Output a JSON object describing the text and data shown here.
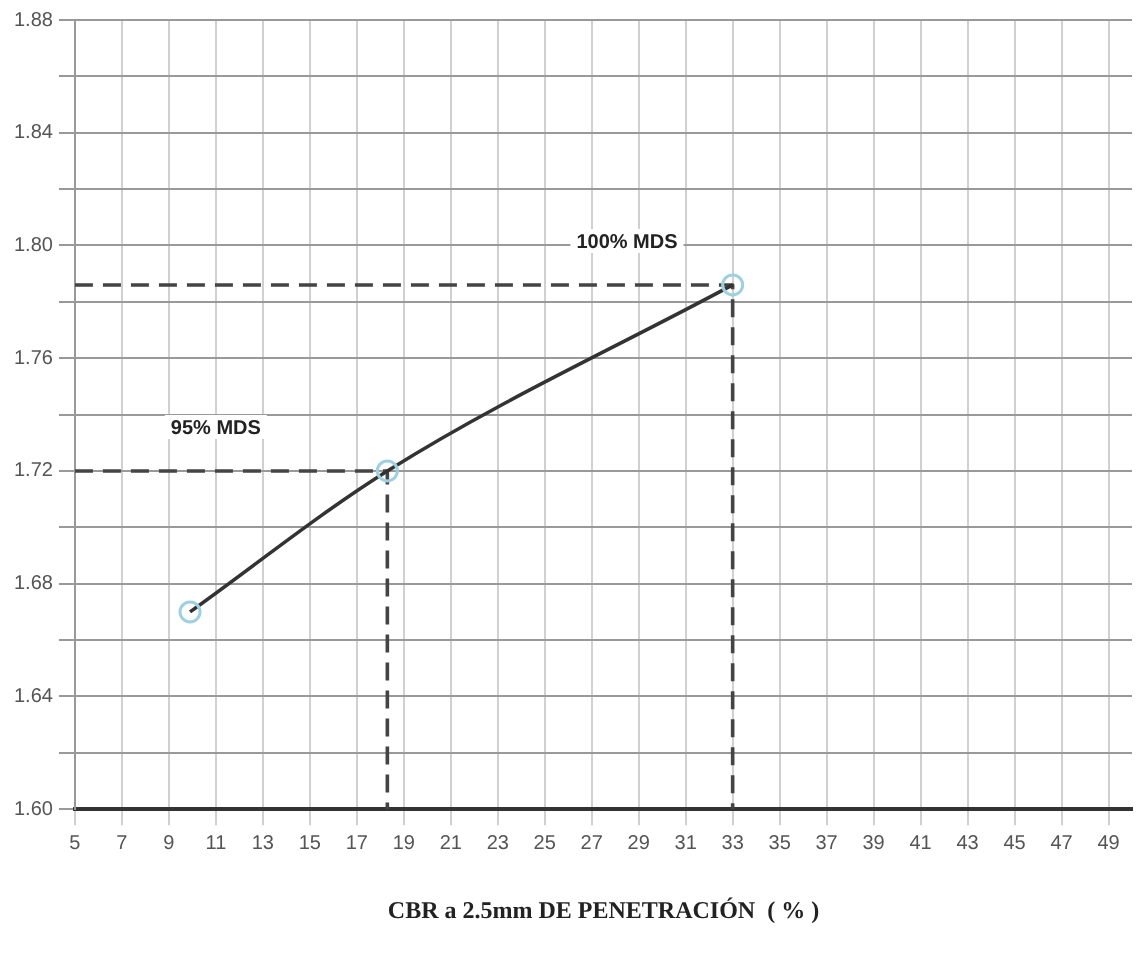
{
  "chart_data": {
    "type": "line",
    "xlabel": "CBR a 2.5mm DE PENETRACIÓN  ( % )",
    "xlim": [
      5,
      50
    ],
    "xticks": [
      5,
      7,
      9,
      11,
      13,
      15,
      17,
      19,
      21,
      23,
      25,
      27,
      29,
      31,
      33,
      35,
      37,
      39,
      41,
      43,
      45,
      47,
      49
    ],
    "ylim": [
      1.6,
      1.88
    ],
    "yticks": [
      {
        "value": 1.6,
        "label": "1.60"
      },
      {
        "value": 1.62,
        "label": null
      },
      1.64,
      {
        "value": 1.66,
        "label": null
      },
      1.68,
      {
        "value": 1.7,
        "label": null
      },
      1.72,
      {
        "value": 1.74,
        "label": null
      },
      1.76,
      {
        "value": 1.78,
        "label": null
      },
      {
        "value": 1.8,
        "label": "1.80"
      },
      {
        "value": 1.82,
        "label": null
      },
      1.84,
      {
        "value": 1.86,
        "label": null
      },
      1.88
    ],
    "grid": true,
    "legend": false,
    "series": [
      {
        "color": "#333333",
        "marker": "none",
        "line_style": "solid",
        "x": [
          9.9,
          18.3,
          33
        ],
        "values": [
          1.67,
          1.72,
          1.786
        ]
      },
      {
        "type": "scatter",
        "color": "#9fd0e0",
        "marker": "circle",
        "x": [
          9.9,
          18.3,
          33
        ],
        "values": [
          1.67,
          1.72,
          1.786
        ]
      },
      {
        "type": "line",
        "color": "#444444",
        "marker": "none",
        "line_style": "dashed",
        "x": [
          5,
          18.3,
          18.3
        ],
        "values": [
          1.72,
          1.72,
          1.6
        ]
      },
      {
        "type": "line",
        "color": "#444444",
        "marker": "none",
        "line_style": "dashed",
        "x": [
          5,
          33,
          33
        ],
        "values": [
          1.786,
          1.786,
          1.6
        ]
      }
    ],
    "annotations": [
      {
        "text": "95% MDS",
        "x": 11,
        "y": 1.72
      },
      {
        "text": "100% MDS",
        "x": 28.5,
        "y": 1.786
      }
    ]
  }
}
